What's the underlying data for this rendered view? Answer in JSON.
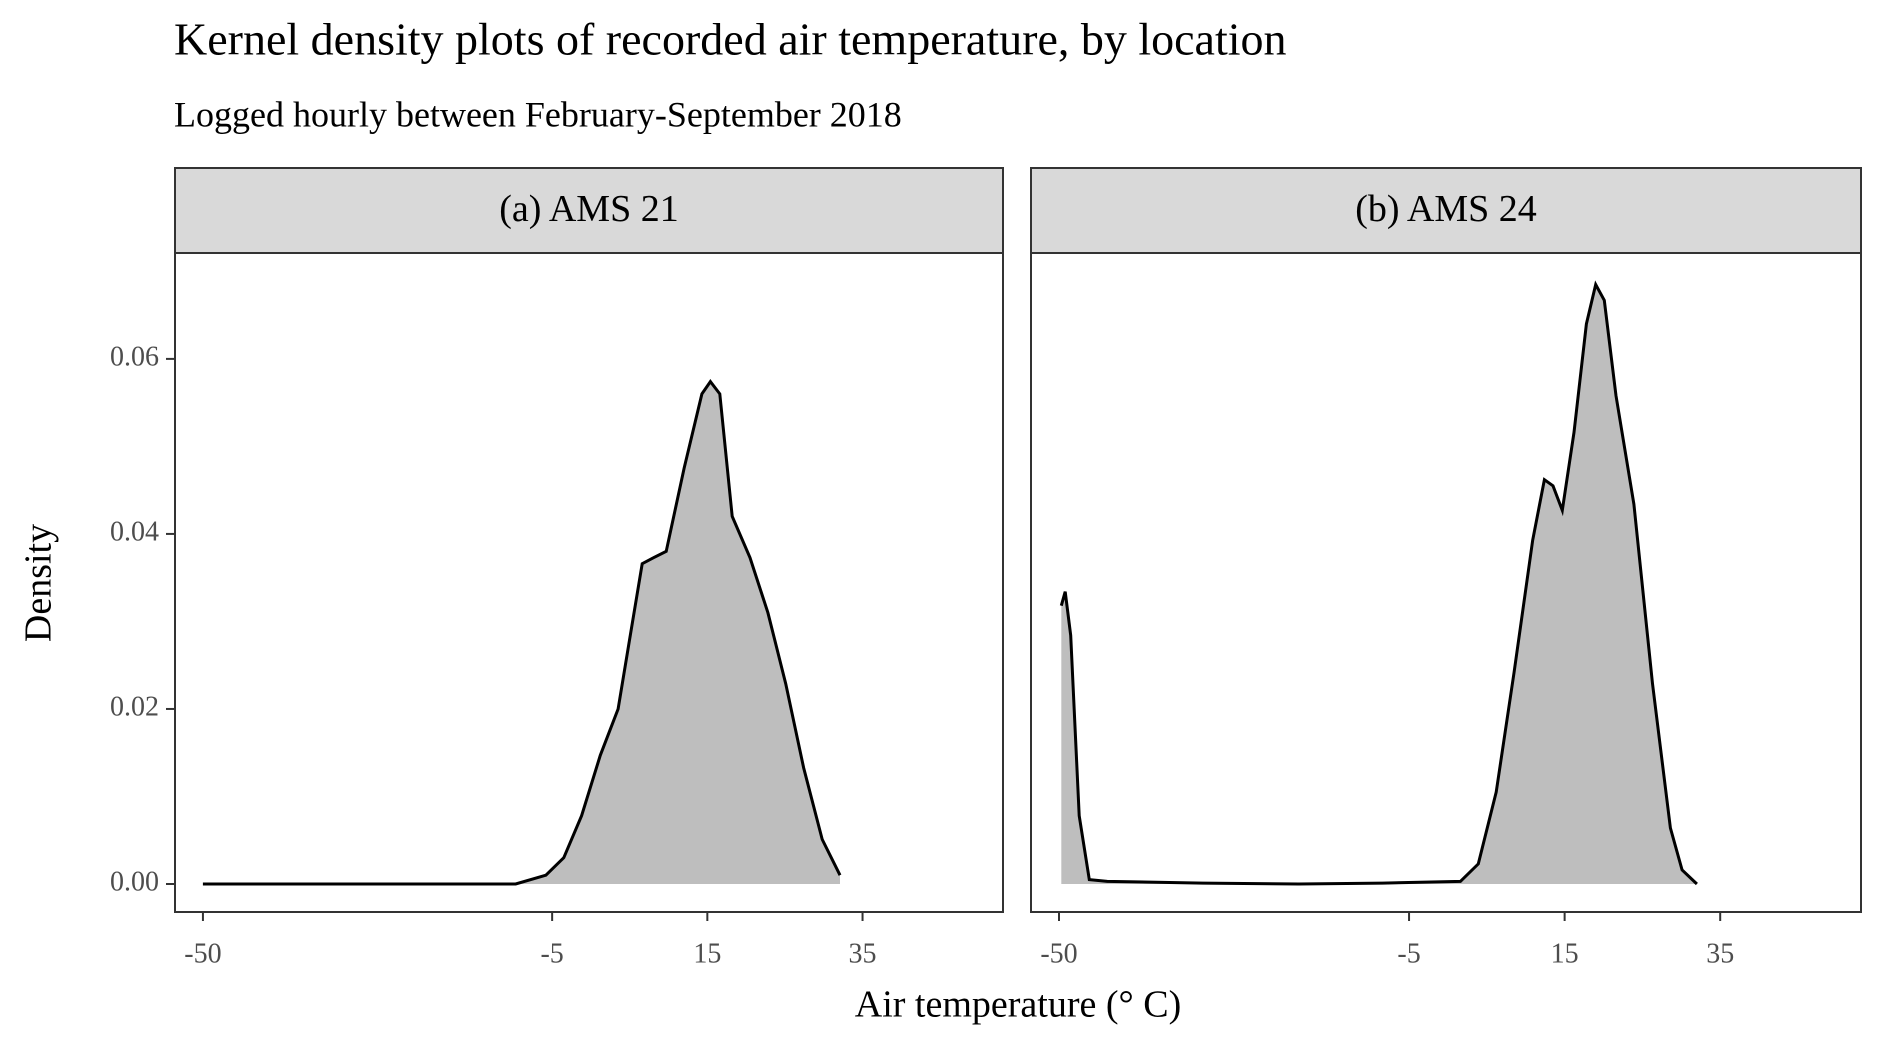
{
  "chart_data": {
    "type": "area",
    "title": "Kernel density plots of recorded air temperature, by location",
    "subtitle": "Logged hourly between February-September 2018",
    "x_label": "Air temperature (° C)",
    "y_label": "Density",
    "xlim": [
      -53.6,
      53.1
    ],
    "xticks": [
      -50,
      -5,
      15,
      35
    ],
    "ylim": [
      -0.0032,
      0.0721
    ],
    "yticks": [
      {
        "value": 0,
        "label": "0.00"
      },
      {
        "value": 0.02,
        "label": "0.02"
      },
      {
        "value": 0.04,
        "label": "0.04"
      },
      {
        "value": 0.06,
        "label": "0.06"
      }
    ],
    "fill_color": "#bebebe",
    "line_color": "#000000",
    "panels": [
      {
        "title": "(a) AMS 21",
        "x": [
          -50,
          -9.7,
          -5.8,
          -3.5,
          -1.2,
          1.2,
          3.5,
          5,
          6.6,
          8.1,
          9.7,
          12,
          14.3,
          15.4,
          16.6,
          18.2,
          20.5,
          22.8,
          25.1,
          27.4,
          29.8,
          32.1
        ],
        "values": [
          0,
          0,
          0.001,
          0.003,
          0.0078,
          0.0147,
          0.02,
          0.028,
          0.0366,
          0.0373,
          0.038,
          0.0475,
          0.056,
          0.0574,
          0.056,
          0.042,
          0.0373,
          0.031,
          0.0229,
          0.0133,
          0.0051,
          0.001
        ]
      },
      {
        "title": "(b) AMS 24",
        "x": [
          -49.7,
          -49.2,
          -48.5,
          -47.4,
          -46.1,
          -43.8,
          -31.5,
          -19.2,
          -8.4,
          1.6,
          3.9,
          6.2,
          8.5,
          10.9,
          12.4,
          13.5,
          14.7,
          16.2,
          17.8,
          19,
          20.1,
          21.6,
          23.9,
          26.3,
          28.6,
          30.1,
          32
        ],
        "values": [
          0.0318,
          0.0334,
          0.0284,
          0.0078,
          0.0005,
          0.0003,
          0.0001,
          0,
          0.0001,
          0.0003,
          0.0023,
          0.0105,
          0.0242,
          0.0393,
          0.0462,
          0.0455,
          0.0427,
          0.0516,
          0.064,
          0.0685,
          0.0667,
          0.0558,
          0.0434,
          0.0229,
          0.0064,
          0.0016,
          0
        ]
      }
    ]
  }
}
